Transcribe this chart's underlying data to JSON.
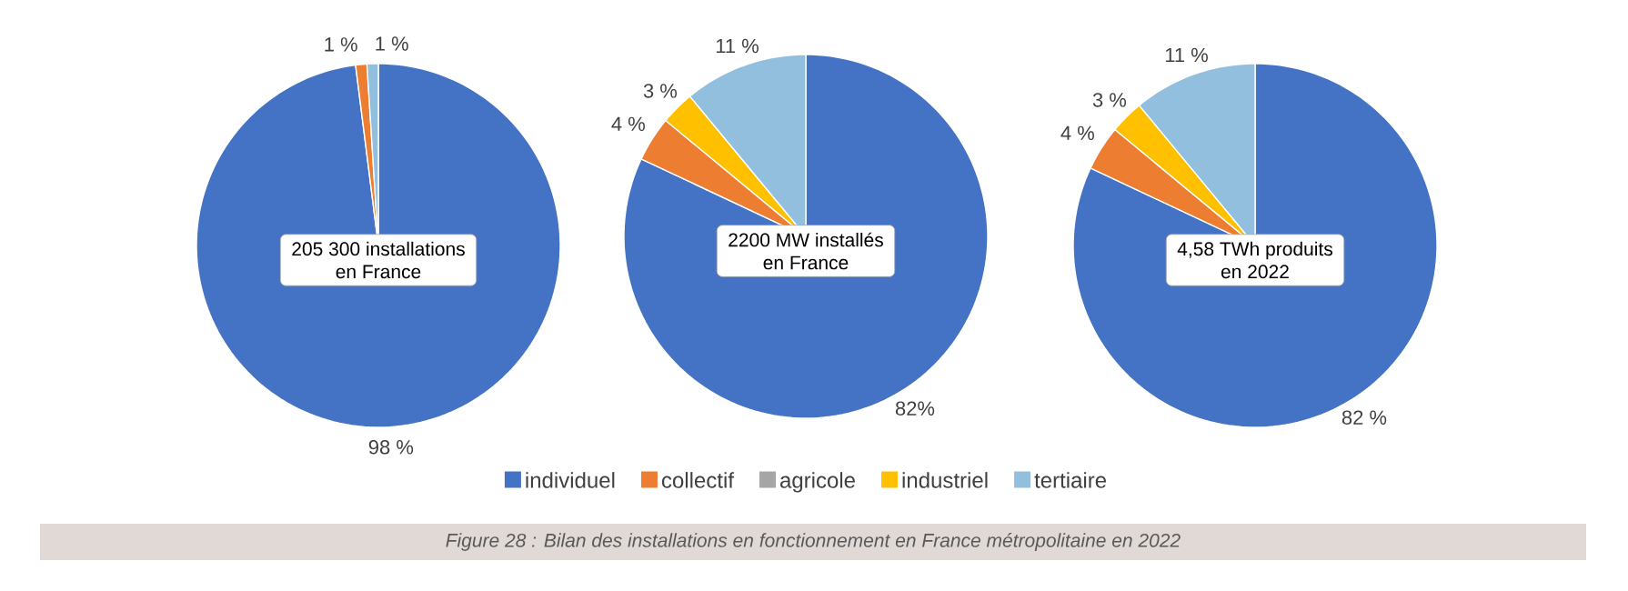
{
  "chart_data": [
    {
      "type": "pie",
      "categories": [
        null,
        null,
        null,
        null,
        null
      ],
      "values": [
        98,
        1,
        0,
        0,
        1
      ],
      "colors": [
        "#4472c4",
        "#ed7d31",
        "#a5a5a5",
        "#ffc000",
        "#93bfdf"
      ],
      "value_labels": [
        "98 %",
        "1 %",
        null,
        null,
        "1 %"
      ],
      "annotations": [
        "205 300 installations",
        "en France"
      ]
    },
    {
      "type": "pie",
      "categories": [
        "individuel",
        "collectif",
        "agricole",
        "industriel",
        "tertiaire"
      ],
      "values": [
        82,
        4,
        0,
        3,
        11
      ],
      "colors": [
        "#4472c4",
        "#ed7d31",
        "#a5a5a5",
        "#ffc000",
        "#93bfdf"
      ],
      "value_labels": [
        "82%",
        "4 %",
        null,
        "3 %",
        "11 %"
      ],
      "annotations": [
        "2200 MW installés",
        "en France",
        "Figure 28 : Bilan des installations en fonctionnement en France métropolitaine en 2022"
      ],
      "legend": "bottom"
    },
    {
      "type": "pie",
      "categories": [
        null,
        null,
        null,
        null,
        null
      ],
      "values": [
        82,
        4,
        0,
        3,
        11
      ],
      "colors": [
        "#4472c4",
        "#ed7d31",
        "#a5a5a5",
        "#ffc000",
        "#93bfdf"
      ],
      "value_labels": [
        "82 %",
        "4 %",
        null,
        "3 %",
        "11 %"
      ],
      "annotations": [
        "4,58 TWh produits",
        "en 2022"
      ]
    }
  ]
}
